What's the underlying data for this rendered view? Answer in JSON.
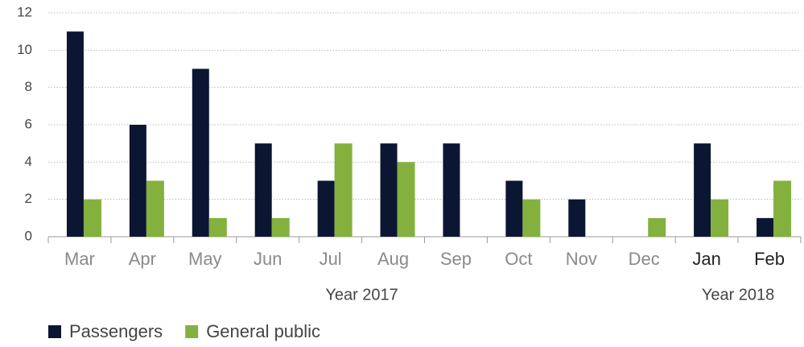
{
  "chart_data": {
    "type": "bar",
    "categories": [
      "Mar",
      "Apr",
      "May",
      "Jun",
      "Jul",
      "Aug",
      "Sep",
      "Oct",
      "Nov",
      "Dec",
      "Jan",
      "Feb"
    ],
    "category_groups": [
      "Year 2017",
      "Year 2018"
    ],
    "series": [
      {
        "name": "Passengers",
        "color": "#0b1633",
        "values": [
          11,
          6,
          9,
          5,
          3,
          5,
          5,
          3,
          2,
          0,
          5,
          1
        ]
      },
      {
        "name": "General public",
        "color": "#84b03e",
        "values": [
          2,
          3,
          1,
          1,
          5,
          4,
          0,
          2,
          0,
          1,
          2,
          3
        ]
      }
    ],
    "ylim": [
      0,
      12
    ],
    "yticks": [
      0,
      2,
      4,
      6,
      8,
      10,
      12
    ],
    "grid": true,
    "legend": "bottom-left"
  }
}
